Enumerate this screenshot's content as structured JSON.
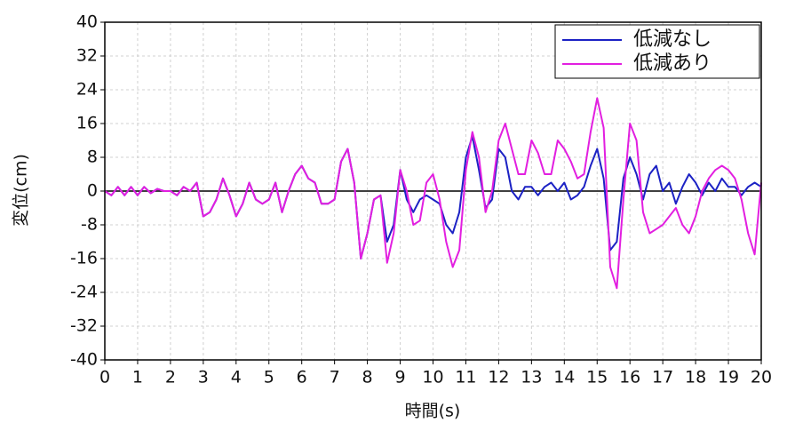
{
  "chart_data": {
    "type": "line",
    "x_label": "時間(s)",
    "y_label": "変位(cm)",
    "x": [
      0,
      0.2,
      0.4,
      0.6,
      0.8,
      1.0,
      1.2,
      1.4,
      1.6,
      1.8,
      2.0,
      2.2,
      2.4,
      2.6,
      2.8,
      3.0,
      3.2,
      3.4,
      3.6,
      3.8,
      4.0,
      4.2,
      4.4,
      4.6,
      4.8,
      5.0,
      5.2,
      5.4,
      5.6,
      5.8,
      6.0,
      6.2,
      6.4,
      6.6,
      6.8,
      7.0,
      7.2,
      7.4,
      7.6,
      7.8,
      8.0,
      8.2,
      8.4,
      8.6,
      8.8,
      9.0,
      9.2,
      9.4,
      9.6,
      9.8,
      10.0,
      10.2,
      10.4,
      10.6,
      10.8,
      11.0,
      11.2,
      11.4,
      11.6,
      11.8,
      12.0,
      12.2,
      12.4,
      12.6,
      12.8,
      13.0,
      13.2,
      13.4,
      13.6,
      13.8,
      14.0,
      14.2,
      14.4,
      14.6,
      14.8,
      15.0,
      15.2,
      15.4,
      15.6,
      15.8,
      16.0,
      16.2,
      16.4,
      16.6,
      16.8,
      17.0,
      17.2,
      17.4,
      17.6,
      17.8,
      18.0,
      18.2,
      18.4,
      18.6,
      18.8,
      19.0,
      19.2,
      19.4,
      19.6,
      19.8,
      20.0
    ],
    "series": [
      {
        "name": "低減なし",
        "color": "#1c22c4",
        "values": [
          0,
          -1,
          1,
          -1,
          1,
          -1,
          1,
          -0.5,
          0.5,
          0,
          0,
          -1,
          1,
          0,
          2,
          -6,
          -5,
          -2,
          3,
          -1,
          -6,
          -3,
          2,
          -2,
          -3,
          -2,
          2,
          -5,
          0,
          4,
          6,
          3,
          2,
          -3,
          -3,
          -2,
          7,
          10,
          2,
          -16,
          -10,
          -2,
          -1,
          -12,
          -8,
          5,
          -2,
          -5,
          -2,
          -1,
          -2,
          -3,
          -8,
          -10,
          -5,
          8,
          13,
          5,
          -4,
          -2,
          10,
          8,
          0,
          -2,
          1,
          1,
          -1,
          1,
          2,
          0,
          2,
          -2,
          -1,
          1,
          6,
          10,
          3,
          -14,
          -12,
          3,
          8,
          4,
          -2,
          4,
          6,
          0,
          2,
          -3,
          1,
          4,
          2,
          -1,
          2,
          0,
          3,
          1,
          1,
          -1,
          1,
          2,
          1
        ]
      },
      {
        "name": "低減あり",
        "color": "#e21fe0",
        "values": [
          0,
          -1,
          1,
          -1,
          1,
          -1,
          1,
          -0.5,
          0.5,
          0,
          0,
          -1,
          1,
          0,
          2,
          -6,
          -5,
          -2,
          3,
          -1,
          -6,
          -3,
          2,
          -2,
          -3,
          -2,
          2,
          -5,
          0,
          4,
          6,
          3,
          2,
          -3,
          -3,
          -2,
          7,
          10,
          2,
          -16,
          -10,
          -2,
          -1,
          -17,
          -10,
          5,
          0,
          -8,
          -7,
          2,
          4,
          -2,
          -12,
          -18,
          -14,
          5,
          14,
          8,
          -5,
          0,
          12,
          16,
          10,
          4,
          4,
          12,
          9,
          4,
          4,
          12,
          10,
          7,
          3,
          4,
          14,
          22,
          15,
          -18,
          -23,
          -2,
          16,
          12,
          -5,
          -10,
          -9,
          -8,
          -6,
          -4,
          -8,
          -10,
          -6,
          0,
          3,
          5,
          6,
          5,
          3,
          -2,
          -10,
          -15,
          2
        ]
      }
    ],
    "xlim": [
      0,
      20
    ],
    "ylim": [
      -40,
      40
    ],
    "xticks": [
      0,
      1,
      2,
      3,
      4,
      5,
      6,
      7,
      8,
      9,
      10,
      11,
      12,
      13,
      14,
      15,
      16,
      17,
      18,
      19,
      20
    ],
    "yticks": [
      -40,
      -32,
      -24,
      -16,
      -8,
      0,
      8,
      16,
      24,
      32,
      40
    ],
    "grid": true,
    "legend": "upper right"
  }
}
